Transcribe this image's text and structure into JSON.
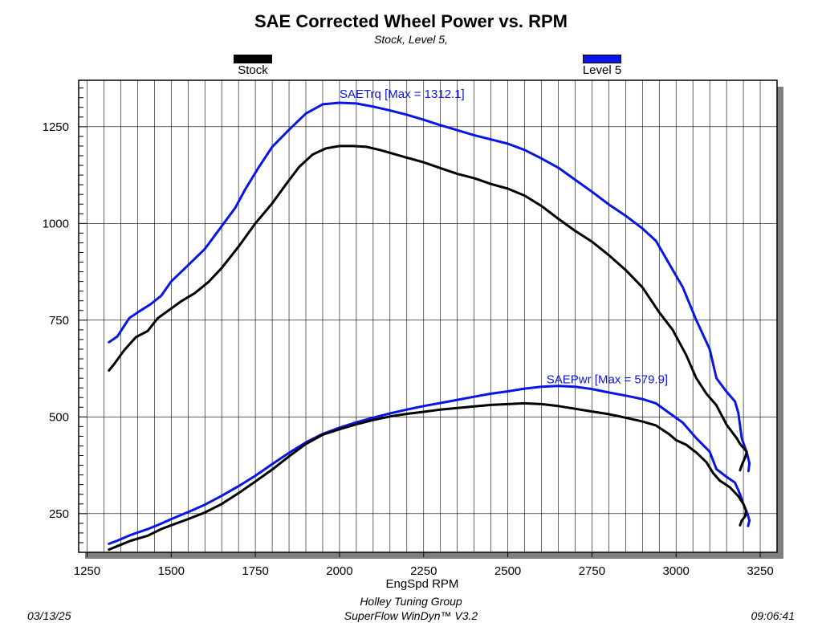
{
  "title": "SAE Corrected Wheel Power vs. RPM",
  "subtitle": "Stock, Level 5,",
  "legend": [
    {
      "label": "Stock",
      "color": "#000000"
    },
    {
      "label": "Level 5",
      "color": "#0a14e6"
    }
  ],
  "footer": {
    "line1": "Holley Tuning Group",
    "line2": "SuperFlow WinDyn™ V3.2",
    "date": "03/13/25",
    "time": "09:06:41"
  },
  "chart_data": {
    "type": "line",
    "title": "SAE Corrected Wheel Power vs. RPM",
    "xlabel": "EngSpd RPM",
    "ylabel": "",
    "xlim": [
      1225,
      3300
    ],
    "ylim": [
      150,
      1370
    ],
    "x_ticks": [
      1250,
      1500,
      1750,
      2000,
      2250,
      2500,
      2750,
      3000,
      3250
    ],
    "y_ticks": [
      250,
      500,
      750,
      1000,
      1250
    ],
    "grid": true,
    "annotations": [
      {
        "text": "SAETrq [Max = 1312.1]",
        "color": "#0a14e6",
        "x": 2000,
        "y": 1324
      },
      {
        "text": "SAEPwr [Max = 579.9]",
        "color": "#0a14e6",
        "x": 2615,
        "y": 587
      }
    ],
    "series": [
      {
        "name": "Level 5",
        "metric": "SAETrq",
        "color": "#0a14e6",
        "x": [
          1315,
          1340,
          1375,
          1400,
          1440,
          1470,
          1500,
          1550,
          1600,
          1650,
          1690,
          1720,
          1760,
          1800,
          1850,
          1900,
          1950,
          2000,
          2050,
          2100,
          2150,
          2200,
          2250,
          2300,
          2350,
          2400,
          2450,
          2500,
          2550,
          2600,
          2650,
          2700,
          2750,
          2800,
          2850,
          2900,
          2940,
          2980,
          3020,
          3060,
          3100,
          3120,
          3150,
          3175,
          3185,
          3195,
          3205,
          3210,
          3218,
          3215
        ],
        "y": [
          693,
          708,
          755,
          770,
          792,
          813,
          850,
          892,
          934,
          993,
          1040,
          1088,
          1145,
          1198,
          1242,
          1284,
          1308,
          1312,
          1310,
          1302,
          1292,
          1281,
          1268,
          1254,
          1241,
          1228,
          1217,
          1206,
          1190,
          1168,
          1144,
          1113,
          1082,
          1049,
          1020,
          987,
          955,
          895,
          835,
          750,
          675,
          600,
          565,
          540,
          510,
          445,
          420,
          408,
          380,
          360
        ],
        "y_min": null
      },
      {
        "name": "Stock",
        "metric": "SAETrq",
        "color": "#000000",
        "x": [
          1315,
          1330,
          1360,
          1395,
          1430,
          1460,
          1490,
          1530,
          1570,
          1610,
          1650,
          1700,
          1750,
          1800,
          1840,
          1880,
          1920,
          1960,
          2000,
          2040,
          2080,
          2120,
          2160,
          2200,
          2250,
          2300,
          2350,
          2400,
          2450,
          2500,
          2550,
          2600,
          2650,
          2700,
          2750,
          2800,
          2850,
          2900,
          2950,
          2990,
          3030,
          3060,
          3090,
          3120,
          3150,
          3180,
          3190,
          3200,
          3210,
          3205,
          3195,
          3190
        ],
        "y": [
          620,
          636,
          672,
          706,
          722,
          755,
          774,
          799,
          820,
          848,
          885,
          940,
          1000,
          1052,
          1100,
          1146,
          1178,
          1194,
          1200,
          1200,
          1198,
          1190,
          1180,
          1170,
          1158,
          1143,
          1128,
          1117,
          1102,
          1090,
          1072,
          1045,
          1012,
          981,
          953,
          918,
          880,
          835,
          770,
          725,
          660,
          600,
          560,
          530,
          480,
          445,
          430,
          420,
          410,
          395,
          375,
          362
        ],
        "y_min": null
      },
      {
        "name": "Level 5",
        "metric": "SAEPwr",
        "color": "#0a14e6",
        "x": [
          1315,
          1340,
          1380,
          1430,
          1470,
          1500,
          1550,
          1600,
          1650,
          1700,
          1750,
          1800,
          1850,
          1900,
          1950,
          2000,
          2050,
          2100,
          2150,
          2200,
          2250,
          2300,
          2350,
          2400,
          2450,
          2500,
          2550,
          2600,
          2650,
          2700,
          2750,
          2800,
          2850,
          2900,
          2940,
          2980,
          3020,
          3060,
          3100,
          3120,
          3150,
          3175,
          3190,
          3200,
          3212,
          3218,
          3214
        ],
        "y": [
          172,
          180,
          195,
          210,
          224,
          236,
          254,
          273,
          296,
          321,
          348,
          378,
          407,
          434,
          456,
          472,
          486,
          498,
          509,
          519,
          528,
          536,
          544,
          552,
          560,
          566,
          573,
          578,
          580,
          578,
          572,
          563,
          555,
          546,
          535,
          510,
          485,
          445,
          410,
          365,
          345,
          330,
          300,
          275,
          250,
          232,
          218
        ],
        "y_min": null
      },
      {
        "name": "Stock",
        "metric": "SAEPwr",
        "color": "#000000",
        "x": [
          1315,
          1340,
          1380,
          1430,
          1470,
          1500,
          1550,
          1600,
          1650,
          1700,
          1750,
          1800,
          1850,
          1900,
          1950,
          2000,
          2050,
          2100,
          2150,
          2200,
          2250,
          2300,
          2350,
          2400,
          2450,
          2500,
          2550,
          2600,
          2650,
          2700,
          2750,
          2800,
          2850,
          2900,
          2940,
          2980,
          3000,
          3030,
          3060,
          3090,
          3110,
          3130,
          3160,
          3185,
          3200,
          3208,
          3205,
          3195,
          3190
        ],
        "y": [
          157,
          166,
          180,
          193,
          210,
          220,
          236,
          253,
          275,
          303,
          333,
          364,
          398,
          430,
          454,
          468,
          481,
          492,
          501,
          508,
          513,
          519,
          523,
          527,
          531,
          533,
          535,
          533,
          528,
          521,
          514,
          507,
          498,
          488,
          478,
          455,
          440,
          428,
          408,
          383,
          355,
          335,
          318,
          295,
          275,
          258,
          243,
          232,
          220
        ],
        "y_min": null
      }
    ]
  }
}
